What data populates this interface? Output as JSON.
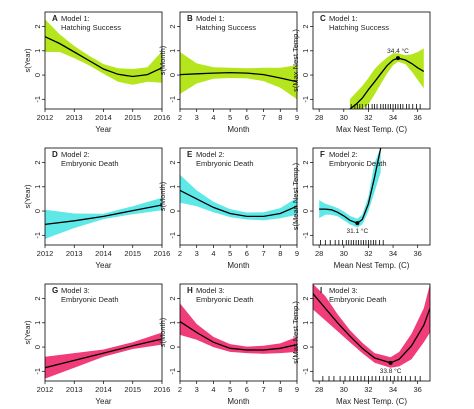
{
  "colors": {
    "model1": "#b5e61d",
    "model2": "#5fe8e8",
    "model3": "#f03c78",
    "fit": "#000000"
  },
  "chart_data": [
    {
      "id": "A",
      "type": "line",
      "model_label": "Model 1:",
      "outcome": "Hatching Success",
      "xlabel": "Year",
      "ylabel": "s(Year)",
      "xlim": [
        2012,
        2016
      ],
      "ylim": [
        -1.4,
        2.6
      ],
      "xticks": [
        2012,
        2013,
        2014,
        2015,
        2016
      ],
      "yticks": [
        -1,
        0,
        1,
        2
      ],
      "rug": false,
      "x": [
        2012,
        2012.5,
        2013,
        2013.5,
        2014,
        2014.5,
        2015,
        2015.5,
        2016
      ],
      "fit": [
        1.58,
        1.3,
        0.95,
        0.6,
        0.25,
        0.03,
        -0.06,
        0.02,
        0.3
      ],
      "lower": [
        0.95,
        0.95,
        0.7,
        0.4,
        0.05,
        -0.28,
        -0.4,
        -0.28,
        -0.32
      ],
      "upper": [
        2.3,
        1.68,
        1.2,
        0.8,
        0.45,
        0.28,
        0.25,
        0.32,
        0.98
      ]
    },
    {
      "id": "B",
      "type": "line",
      "model_label": "Model 1:",
      "outcome": "Hatching Success",
      "xlabel": "Month",
      "ylabel": "s(Month)",
      "xlim": [
        2,
        9
      ],
      "ylim": [
        -1.4,
        2.6
      ],
      "xticks": [
        2,
        3,
        4,
        5,
        6,
        7,
        8,
        9
      ],
      "yticks": [
        -1,
        0,
        1,
        2
      ],
      "rug": false,
      "x": [
        2,
        3,
        4,
        5,
        6,
        7,
        8,
        9
      ],
      "fit": [
        0.02,
        0.05,
        0.08,
        0.1,
        0.08,
        0.02,
        -0.12,
        -0.28
      ],
      "lower": [
        -0.78,
        -0.35,
        -0.15,
        -0.12,
        -0.14,
        -0.25,
        -0.52,
        -1.0
      ],
      "upper": [
        0.95,
        0.48,
        0.32,
        0.3,
        0.28,
        0.3,
        0.3,
        0.4
      ]
    },
    {
      "id": "C",
      "type": "line",
      "model_label": "Model 1:",
      "outcome": "Hatching Success",
      "xlabel": "Max Nest Temp. (C)",
      "ylabel": "s(Max Nest Temp.)",
      "xlim": [
        27.5,
        37
      ],
      "ylim": [
        -1.4,
        2.6
      ],
      "xticks": [
        28,
        30,
        32,
        34,
        36
      ],
      "yticks": [
        -1,
        0,
        1,
        2
      ],
      "rug": true,
      "rug_x": [
        30.6,
        30.9,
        31.1,
        31.3,
        31.5,
        31.8,
        32.0,
        32.3,
        32.5,
        32.7,
        33.0,
        33.2,
        33.4,
        33.6,
        33.8,
        34.0,
        34.2,
        34.4,
        34.6,
        34.8,
        35.1,
        35.3,
        35.6,
        35.9,
        36.2
      ],
      "x": [
        30.5,
        31,
        31.5,
        32,
        32.5,
        33,
        33.5,
        34,
        34.4,
        35,
        35.5,
        36,
        36.5
      ],
      "fit": [
        -1.4,
        -1.2,
        -0.95,
        -0.6,
        -0.28,
        0.05,
        0.38,
        0.62,
        0.7,
        0.62,
        0.48,
        0.3,
        0.15
      ],
      "lower": [
        -1.4,
        -1.4,
        -1.4,
        -1.2,
        -0.8,
        -0.38,
        0.05,
        0.4,
        0.55,
        0.45,
        0.15,
        -0.2,
        -0.55
      ],
      "upper": [
        -1.0,
        -0.72,
        -0.45,
        -0.12,
        0.25,
        0.5,
        0.72,
        0.9,
        0.9,
        0.82,
        0.85,
        0.95,
        1.1
      ],
      "annotation": {
        "text": "34.4 °C",
        "x": 34.4,
        "y": 0.7
      }
    },
    {
      "id": "D",
      "type": "line",
      "model_label": "Model 2:",
      "outcome": "Embryonic Death",
      "xlabel": "Year",
      "ylabel": "s(Year)",
      "xlim": [
        2012,
        2016
      ],
      "ylim": [
        -1.4,
        2.6
      ],
      "xticks": [
        2012,
        2013,
        2014,
        2015,
        2016
      ],
      "yticks": [
        -1,
        0,
        1,
        2
      ],
      "rug": false,
      "x": [
        2012,
        2013,
        2014,
        2015,
        2016
      ],
      "fit": [
        -0.55,
        -0.4,
        -0.22,
        0.02,
        0.25
      ],
      "lower": [
        -1.15,
        -0.7,
        -0.33,
        -0.13,
        0.03
      ],
      "upper": [
        0.05,
        -0.1,
        -0.11,
        0.2,
        0.55
      ]
    },
    {
      "id": "E",
      "type": "line",
      "model_label": "Model 2:",
      "outcome": "Embryonic Death",
      "xlabel": "Month",
      "ylabel": "s(Month)",
      "xlim": [
        2,
        9
      ],
      "ylim": [
        -1.4,
        2.6
      ],
      "xticks": [
        2,
        3,
        4,
        5,
        6,
        7,
        8,
        9
      ],
      "yticks": [
        -1,
        0,
        1,
        2
      ],
      "rug": false,
      "x": [
        2,
        3,
        4,
        5,
        6,
        7,
        8,
        9
      ],
      "fit": [
        0.85,
        0.5,
        0.15,
        -0.1,
        -0.22,
        -0.22,
        -0.1,
        0.2
      ],
      "lower": [
        0.35,
        0.2,
        -0.05,
        -0.25,
        -0.35,
        -0.38,
        -0.3,
        -0.15
      ],
      "upper": [
        1.5,
        0.85,
        0.38,
        0.08,
        -0.06,
        -0.05,
        0.12,
        0.55
      ]
    },
    {
      "id": "F",
      "type": "line",
      "model_label": "Model 2:",
      "outcome": "Embryonic Death",
      "xlabel": "Mean Nest Temp. (C)",
      "ylabel": "s(Mean Nest Temp.)",
      "xlim": [
        27.5,
        37
      ],
      "ylim": [
        -1.4,
        2.6
      ],
      "xticks": [
        28,
        30,
        32,
        34,
        36
      ],
      "yticks": [
        -1,
        0,
        1,
        2
      ],
      "rug": true,
      "rug_x": [
        28.1,
        28.5,
        28.9,
        29.3,
        29.6,
        29.9,
        30.2,
        30.4,
        30.6,
        30.8,
        31.0,
        31.2,
        31.4,
        31.6,
        31.8,
        32.0,
        32.2,
        32.4,
        32.6,
        32.9,
        33.2
      ],
      "x": [
        28,
        28.5,
        29,
        29.5,
        30,
        30.5,
        31.1,
        31.5,
        32,
        32.5,
        33
      ],
      "fit": [
        0.08,
        0.08,
        0.05,
        -0.05,
        -0.2,
        -0.38,
        -0.5,
        -0.35,
        0.3,
        1.4,
        2.6
      ],
      "lower": [
        -0.3,
        -0.15,
        -0.15,
        -0.22,
        -0.38,
        -0.55,
        -0.68,
        -0.55,
        0.0,
        0.8,
        1.6
      ],
      "upper": [
        0.45,
        0.3,
        0.22,
        0.12,
        -0.02,
        -0.2,
        -0.32,
        -0.15,
        0.6,
        2.0,
        2.6
      ],
      "annotation": {
        "text": "31.1 °C",
        "x": 31.1,
        "y": -0.5
      }
    },
    {
      "id": "G",
      "type": "line",
      "model_label": "Model 3:",
      "outcome": "Embryonic Death",
      "xlabel": "Year",
      "ylabel": "s(Year)",
      "xlim": [
        2012,
        2016
      ],
      "ylim": [
        -1.4,
        2.6
      ],
      "xticks": [
        2012,
        2013,
        2014,
        2015,
        2016
      ],
      "yticks": [
        -1,
        0,
        1,
        2
      ],
      "rug": false,
      "x": [
        2012,
        2013,
        2014,
        2015,
        2016
      ],
      "fit": [
        -0.85,
        -0.55,
        -0.25,
        0.05,
        0.33
      ],
      "lower": [
        -1.3,
        -0.85,
        -0.4,
        -0.08,
        0.1
      ],
      "upper": [
        -0.4,
        -0.25,
        -0.1,
        0.2,
        0.6
      ]
    },
    {
      "id": "H",
      "type": "line",
      "model_label": "Model 3:",
      "outcome": "Embryonic Death",
      "xlabel": "Month",
      "ylabel": "s(Month)",
      "xlim": [
        2,
        9
      ],
      "ylim": [
        -1.4,
        2.6
      ],
      "xticks": [
        2,
        3,
        4,
        5,
        6,
        7,
        8,
        9
      ],
      "yticks": [
        -1,
        0,
        1,
        2
      ],
      "rug": false,
      "x": [
        2,
        3,
        4,
        5,
        6,
        7,
        8,
        9
      ],
      "fit": [
        1.05,
        0.6,
        0.2,
        -0.05,
        -0.12,
        -0.12,
        -0.05,
        0.1
      ],
      "lower": [
        0.5,
        0.3,
        0.0,
        -0.2,
        -0.25,
        -0.28,
        -0.25,
        -0.2
      ],
      "upper": [
        1.8,
        0.95,
        0.42,
        0.12,
        0.02,
        0.05,
        0.15,
        0.42
      ]
    },
    {
      "id": "I",
      "type": "line",
      "model_label": "Model 3:",
      "outcome": "Embryonic Death",
      "xlabel": "Max Nest Temp. (C)",
      "ylabel": "s(Max Nest Temp.)",
      "xlim": [
        27.5,
        37
      ],
      "ylim": [
        -1.4,
        2.6
      ],
      "xticks": [
        28,
        30,
        32,
        34,
        36
      ],
      "yticks": [
        -1,
        0,
        1,
        2
      ],
      "rug": true,
      "rug_x": [
        28.3,
        28.8,
        29.2,
        29.7,
        30.1,
        30.5,
        30.8,
        31.1,
        31.4,
        31.7,
        32.0,
        32.3,
        32.6,
        32.9,
        33.2,
        33.5,
        33.8,
        34.1,
        34.4,
        34.7,
        35.0,
        35.4,
        35.8,
        36.2
      ],
      "x": [
        27.5,
        28.5,
        29.5,
        30.5,
        31.5,
        32.5,
        33.8,
        34.5,
        35.5,
        36.5,
        37
      ],
      "fit": [
        2.2,
        1.6,
        1.0,
        0.45,
        -0.05,
        -0.45,
        -0.65,
        -0.5,
        0.05,
        0.9,
        1.6
      ],
      "lower": [
        1.55,
        1.1,
        0.65,
        0.2,
        -0.25,
        -0.65,
        -0.85,
        -0.8,
        -0.5,
        0.2,
        0.6
      ],
      "upper": [
        2.6,
        2.1,
        1.35,
        0.7,
        0.18,
        -0.25,
        -0.42,
        -0.2,
        0.55,
        1.6,
        2.6
      ],
      "annotation": {
        "text": "33.8 °C",
        "x": 33.8,
        "y": -0.65
      }
    }
  ]
}
